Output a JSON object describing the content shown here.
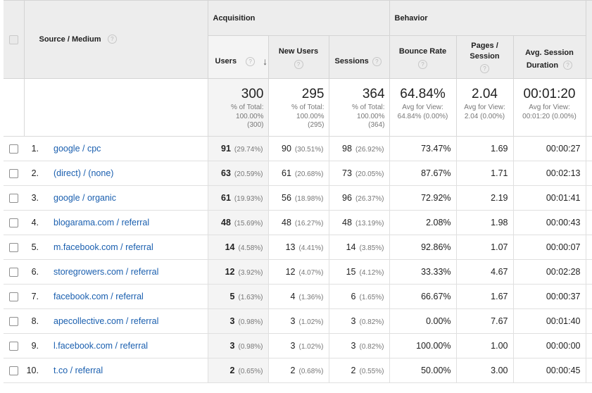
{
  "header": {
    "source_medium": "Source / Medium",
    "acquisition": "Acquisition",
    "behavior": "Behavior",
    "help": "?",
    "sort_arrow": "↓",
    "cols": {
      "users": "Users",
      "new_users": "New Users",
      "sessions": "Sessions",
      "bounce_rate": "Bounce Rate",
      "pages_l1": "Pages /",
      "pages_l2": "Session",
      "dur_l1": "Avg. Session",
      "dur_l2": "Duration"
    }
  },
  "totals": {
    "users": {
      "big": "300",
      "l1": "% of Total:",
      "l2": "100.00%",
      "l3": "(300)"
    },
    "new_users": {
      "big": "295",
      "l1": "% of Total:",
      "l2": "100.00%",
      "l3": "(295)"
    },
    "sessions": {
      "big": "364",
      "l1": "% of Total:",
      "l2": "100.00%",
      "l3": "(364)"
    },
    "bounce_rate": {
      "big": "64.84%",
      "l1": "Avg for View:",
      "l2": "64.84% (0.00%)"
    },
    "pages": {
      "big": "2.04",
      "l1": "Avg for View:",
      "l2": "2.04 (0.00%)"
    },
    "duration": {
      "big": "00:01:20",
      "l1": "Avg for View:",
      "l2": "00:01:20 (0.00%)"
    }
  },
  "rows": [
    {
      "idx": "1.",
      "src": "google / cpc",
      "users": "91",
      "users_pct": "(29.74%)",
      "new": "90",
      "new_pct": "(30.51%)",
      "sess": "98",
      "sess_pct": "(26.92%)",
      "bounce": "73.47%",
      "pages": "1.69",
      "dur": "00:00:27"
    },
    {
      "idx": "2.",
      "src": "(direct) / (none)",
      "users": "63",
      "users_pct": "(20.59%)",
      "new": "61",
      "new_pct": "(20.68%)",
      "sess": "73",
      "sess_pct": "(20.05%)",
      "bounce": "87.67%",
      "pages": "1.71",
      "dur": "00:02:13"
    },
    {
      "idx": "3.",
      "src": "google / organic",
      "users": "61",
      "users_pct": "(19.93%)",
      "new": "56",
      "new_pct": "(18.98%)",
      "sess": "96",
      "sess_pct": "(26.37%)",
      "bounce": "72.92%",
      "pages": "2.19",
      "dur": "00:01:41"
    },
    {
      "idx": "4.",
      "src": "blogarama.com / referral",
      "users": "48",
      "users_pct": "(15.69%)",
      "new": "48",
      "new_pct": "(16.27%)",
      "sess": "48",
      "sess_pct": "(13.19%)",
      "bounce": "2.08%",
      "pages": "1.98",
      "dur": "00:00:43"
    },
    {
      "idx": "5.",
      "src": "m.facebook.com / referral",
      "users": "14",
      "users_pct": "(4.58%)",
      "new": "13",
      "new_pct": "(4.41%)",
      "sess": "14",
      "sess_pct": "(3.85%)",
      "bounce": "92.86%",
      "pages": "1.07",
      "dur": "00:00:07"
    },
    {
      "idx": "6.",
      "src": "storegrowers.com / referral",
      "users": "12",
      "users_pct": "(3.92%)",
      "new": "12",
      "new_pct": "(4.07%)",
      "sess": "15",
      "sess_pct": "(4.12%)",
      "bounce": "33.33%",
      "pages": "4.67",
      "dur": "00:02:28"
    },
    {
      "idx": "7.",
      "src": "facebook.com / referral",
      "users": "5",
      "users_pct": "(1.63%)",
      "new": "4",
      "new_pct": "(1.36%)",
      "sess": "6",
      "sess_pct": "(1.65%)",
      "bounce": "66.67%",
      "pages": "1.67",
      "dur": "00:00:37"
    },
    {
      "idx": "8.",
      "src": "apecollective.com / referral",
      "users": "3",
      "users_pct": "(0.98%)",
      "new": "3",
      "new_pct": "(1.02%)",
      "sess": "3",
      "sess_pct": "(0.82%)",
      "bounce": "0.00%",
      "pages": "7.67",
      "dur": "00:01:40"
    },
    {
      "idx": "9.",
      "src": "l.facebook.com / referral",
      "users": "3",
      "users_pct": "(0.98%)",
      "new": "3",
      "new_pct": "(1.02%)",
      "sess": "3",
      "sess_pct": "(0.82%)",
      "bounce": "100.00%",
      "pages": "1.00",
      "dur": "00:00:00"
    },
    {
      "idx": "10.",
      "src": "t.co / referral",
      "users": "2",
      "users_pct": "(0.65%)",
      "new": "2",
      "new_pct": "(0.68%)",
      "sess": "2",
      "sess_pct": "(0.55%)",
      "bounce": "50.00%",
      "pages": "3.00",
      "dur": "00:00:45"
    }
  ]
}
